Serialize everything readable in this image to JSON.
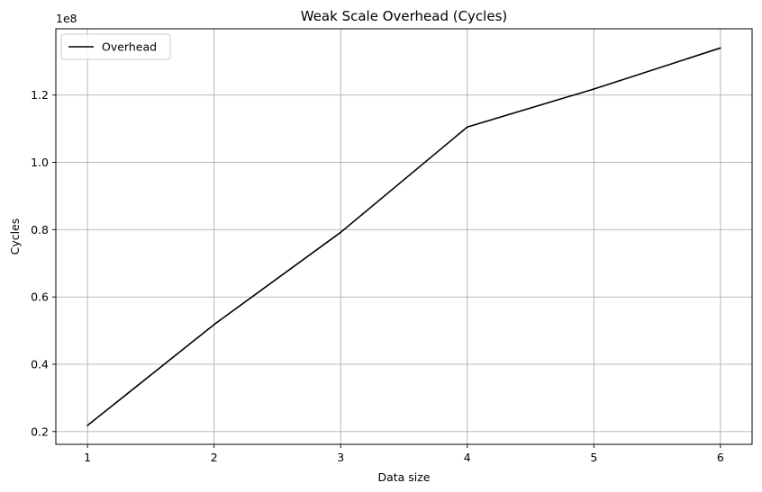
{
  "chart_data": {
    "type": "line",
    "title": "Weak Scale Overhead (Cycles)",
    "xlabel": "Data size",
    "ylabel": "Cycles",
    "y_offset_label": "1e8",
    "x": [
      1,
      2,
      3,
      4,
      5,
      6
    ],
    "series": [
      {
        "name": "Overhead",
        "color": "#000000",
        "values": [
          0.218,
          0.518,
          0.792,
          1.105,
          1.218,
          1.34
        ]
      }
    ],
    "xlim": [
      0.75,
      6.25
    ],
    "ylim": [
      0.162,
      1.397
    ],
    "x_ticks": [
      1,
      2,
      3,
      4,
      5,
      6
    ],
    "y_ticks": [
      0.2,
      0.4,
      0.6,
      0.8,
      1.0,
      1.2
    ],
    "x_tick_labels": [
      "1",
      "2",
      "3",
      "4",
      "5",
      "6"
    ],
    "y_tick_labels": [
      "0.2",
      "0.4",
      "0.6",
      "0.8",
      "1.0",
      "1.2"
    ],
    "grid": true,
    "legend_position": "top-left"
  }
}
